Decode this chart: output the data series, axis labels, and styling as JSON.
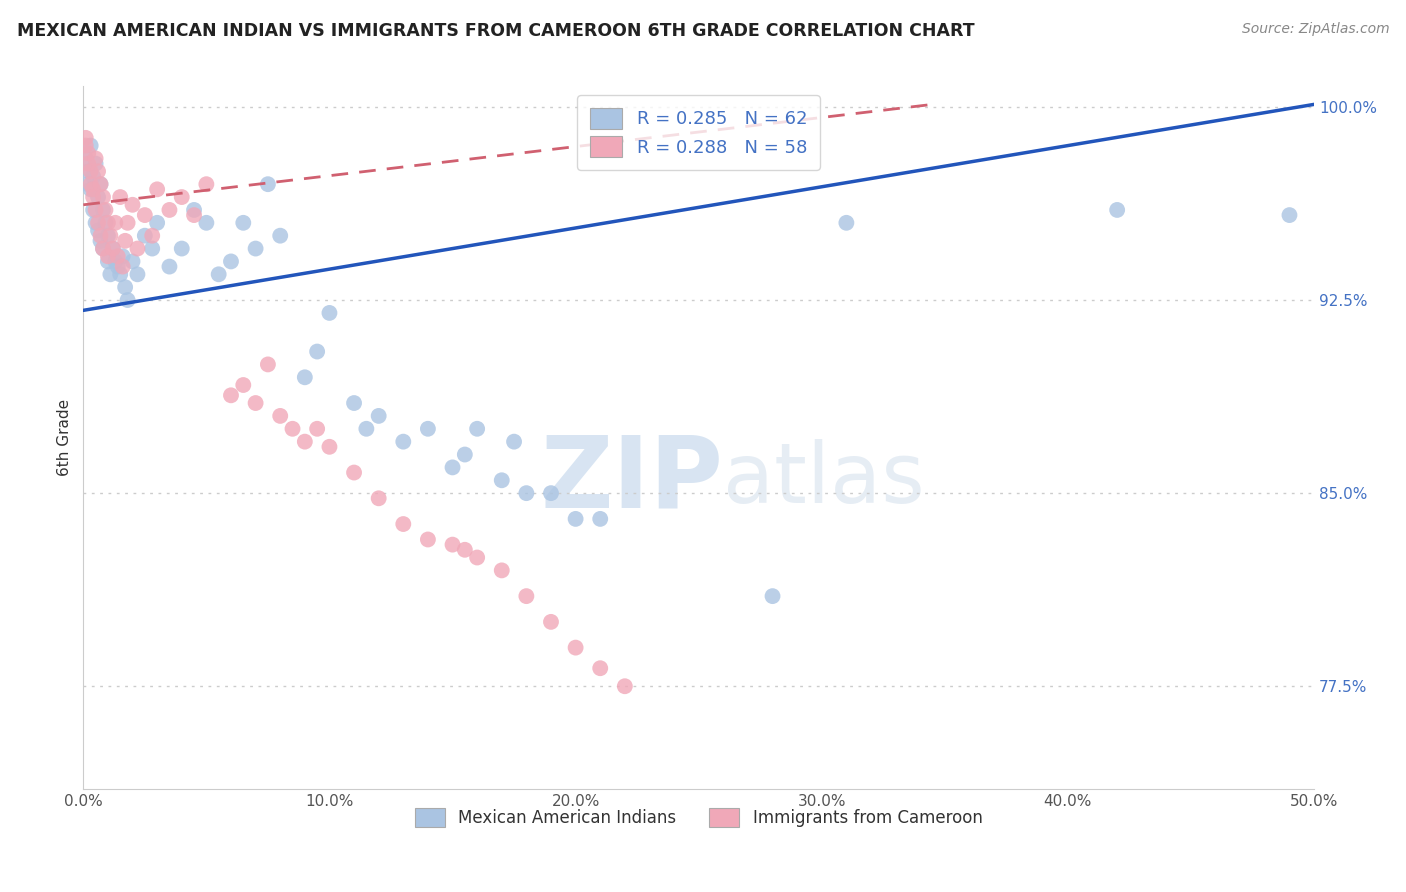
{
  "title": "MEXICAN AMERICAN INDIAN VS IMMIGRANTS FROM CAMEROON 6TH GRADE CORRELATION CHART",
  "source": "Source: ZipAtlas.com",
  "ylabel": "6th Grade",
  "xlim": [
    0.0,
    0.5
  ],
  "ylim": [
    0.735,
    1.008
  ],
  "xticks": [
    0.0,
    0.1,
    0.2,
    0.3,
    0.4,
    0.5
  ],
  "xticklabels": [
    "0.0%",
    "10.0%",
    "20.0%",
    "30.0%",
    "40.0%",
    "50.0%"
  ],
  "yticks": [
    0.775,
    0.85,
    0.925,
    1.0
  ],
  "yticklabels": [
    "77.5%",
    "85.0%",
    "92.5%",
    "100.0%"
  ],
  "legend_labels": [
    "Mexican American Indians",
    "Immigrants from Cameroon"
  ],
  "legend_r_blue": "R = 0.285",
  "legend_n_blue": "N = 62",
  "legend_r_pink": "R = 0.288",
  "legend_n_pink": "N = 58",
  "blue_color": "#aac4e2",
  "pink_color": "#f0a8b8",
  "blue_line_color": "#2255bb",
  "pink_line_color": "#d06070",
  "watermark_zip": "ZIP",
  "watermark_atlas": "atlas",
  "blue_trend_x": [
    0.0,
    0.5
  ],
  "blue_trend_y": [
    0.921,
    1.001
  ],
  "pink_trend_x": [
    0.0,
    0.345
  ],
  "pink_trend_y": [
    0.962,
    1.001
  ],
  "blue_points_x": [
    0.001,
    0.002,
    0.002,
    0.003,
    0.003,
    0.004,
    0.004,
    0.005,
    0.005,
    0.006,
    0.006,
    0.007,
    0.007,
    0.008,
    0.008,
    0.009,
    0.01,
    0.01,
    0.011,
    0.012,
    0.013,
    0.014,
    0.015,
    0.016,
    0.017,
    0.018,
    0.02,
    0.022,
    0.025,
    0.028,
    0.03,
    0.035,
    0.04,
    0.045,
    0.05,
    0.055,
    0.06,
    0.065,
    0.07,
    0.075,
    0.08,
    0.09,
    0.095,
    0.1,
    0.11,
    0.115,
    0.12,
    0.13,
    0.14,
    0.15,
    0.155,
    0.16,
    0.17,
    0.175,
    0.18,
    0.19,
    0.2,
    0.21,
    0.28,
    0.31,
    0.42,
    0.49
  ],
  "blue_points_y": [
    0.98,
    0.975,
    0.97,
    0.985,
    0.968,
    0.973,
    0.96,
    0.978,
    0.955,
    0.965,
    0.952,
    0.97,
    0.948,
    0.96,
    0.945,
    0.955,
    0.95,
    0.94,
    0.935,
    0.945,
    0.94,
    0.938,
    0.935,
    0.942,
    0.93,
    0.925,
    0.94,
    0.935,
    0.95,
    0.945,
    0.955,
    0.938,
    0.945,
    0.96,
    0.955,
    0.935,
    0.94,
    0.955,
    0.945,
    0.97,
    0.95,
    0.895,
    0.905,
    0.92,
    0.885,
    0.875,
    0.88,
    0.87,
    0.875,
    0.86,
    0.865,
    0.875,
    0.855,
    0.87,
    0.85,
    0.85,
    0.84,
    0.84,
    0.81,
    0.955,
    0.96,
    0.958
  ],
  "pink_points_x": [
    0.001,
    0.001,
    0.002,
    0.002,
    0.003,
    0.003,
    0.004,
    0.004,
    0.005,
    0.005,
    0.006,
    0.006,
    0.007,
    0.007,
    0.008,
    0.008,
    0.009,
    0.01,
    0.01,
    0.011,
    0.012,
    0.013,
    0.014,
    0.015,
    0.016,
    0.017,
    0.018,
    0.02,
    0.022,
    0.025,
    0.028,
    0.03,
    0.035,
    0.04,
    0.045,
    0.05,
    0.06,
    0.065,
    0.07,
    0.075,
    0.08,
    0.085,
    0.09,
    0.095,
    0.1,
    0.11,
    0.12,
    0.13,
    0.14,
    0.15,
    0.155,
    0.16,
    0.17,
    0.18,
    0.19,
    0.2,
    0.21,
    0.22
  ],
  "pink_points_y": [
    0.988,
    0.985,
    0.982,
    0.978,
    0.975,
    0.97,
    0.968,
    0.965,
    0.98,
    0.96,
    0.975,
    0.955,
    0.97,
    0.95,
    0.965,
    0.945,
    0.96,
    0.955,
    0.942,
    0.95,
    0.945,
    0.955,
    0.942,
    0.965,
    0.938,
    0.948,
    0.955,
    0.962,
    0.945,
    0.958,
    0.95,
    0.968,
    0.96,
    0.965,
    0.958,
    0.97,
    0.888,
    0.892,
    0.885,
    0.9,
    0.88,
    0.875,
    0.87,
    0.875,
    0.868,
    0.858,
    0.848,
    0.838,
    0.832,
    0.83,
    0.828,
    0.825,
    0.82,
    0.81,
    0.8,
    0.79,
    0.782,
    0.775
  ]
}
